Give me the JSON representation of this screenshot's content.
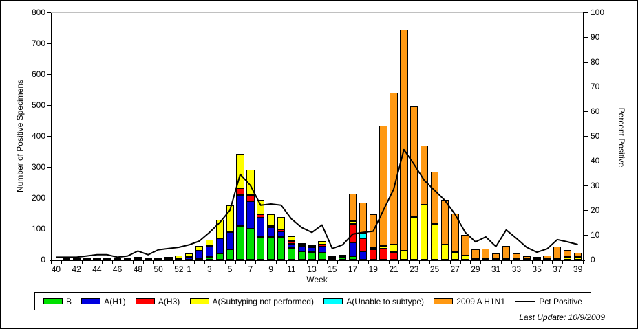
{
  "figure": {
    "last_update": "Last Update: 10/9/2009"
  },
  "axes": {
    "x_title": "Week",
    "y_left_title": "Number of Positive Specimens",
    "y_right_title": "Percent Positive",
    "y_left_ticks": [
      "0",
      "100",
      "200",
      "300",
      "400",
      "500",
      "600",
      "700",
      "800"
    ],
    "y_right_ticks": [
      "0",
      "10",
      "20",
      "30",
      "40",
      "50",
      "60",
      "70",
      "80",
      "90",
      "100"
    ],
    "x_labels": [
      "40",
      "42",
      "44",
      "46",
      "48",
      "50",
      "52",
      "1",
      "3",
      "5",
      "7",
      "9",
      "11",
      "13",
      "15",
      "17",
      "19",
      "21",
      "23",
      "25",
      "27",
      "29",
      "31",
      "33",
      "35",
      "37",
      "39"
    ]
  },
  "legend": {
    "items": [
      {
        "label": "B",
        "color": "#00E100",
        "type": "box"
      },
      {
        "label": "A(H1)",
        "color": "#0000E0",
        "type": "box"
      },
      {
        "label": "A(H3)",
        "color": "#FF0000",
        "type": "box"
      },
      {
        "label": "A(Subtyping not performed)",
        "color": "#FFFF00",
        "type": "box"
      },
      {
        "label": "A(Unable to subtype)",
        "color": "#00FFFF",
        "type": "box"
      },
      {
        "label": "2009 A H1N1",
        "color": "#FF9913",
        "type": "box"
      },
      {
        "label": "Pct Positive",
        "color": "#000000",
        "type": "line"
      }
    ]
  },
  "chart_data": {
    "type": "bar",
    "subtype": "stacked-bars-with-line-overlay",
    "title": "",
    "xlabel": "Week",
    "ylabel_left": "Number of Positive Specimens",
    "ylabel_right": "Percent Positive",
    "y_left_range": [
      0,
      800
    ],
    "y_right_range": [
      0,
      100
    ],
    "grid": "single gray line at top (800 / 100 level)",
    "legend_position": "bottom",
    "categories": [
      "40",
      "41",
      "42",
      "43",
      "44",
      "45",
      "46",
      "47",
      "48",
      "49",
      "50",
      "51",
      "52",
      "1",
      "2",
      "3",
      "4",
      "5",
      "6",
      "7",
      "8",
      "9",
      "10",
      "11",
      "12",
      "13",
      "14",
      "15",
      "16",
      "17",
      "18",
      "19",
      "20",
      "21",
      "22",
      "23",
      "24",
      "25",
      "26",
      "27",
      "28",
      "29",
      "30",
      "31",
      "32",
      "33",
      "34",
      "35",
      "36",
      "37",
      "38",
      "39"
    ],
    "series": [
      {
        "name": "B",
        "color": "#00E100",
        "values": [
          0,
          0,
          0,
          0,
          1,
          0,
          0,
          0,
          1,
          0,
          1,
          1,
          1,
          0,
          3,
          8,
          20,
          33,
          110,
          100,
          74,
          74,
          74,
          38,
          26,
          25,
          22,
          4,
          6,
          11,
          0,
          0,
          0,
          0,
          0,
          0,
          0,
          0,
          0,
          0,
          0,
          0,
          0,
          0,
          0,
          0,
          0,
          0,
          0,
          0,
          0,
          0
        ]
      },
      {
        "name": "A(H1)",
        "color": "#0000E0",
        "values": [
          0,
          0,
          0,
          1,
          1,
          1,
          0,
          1,
          2,
          1,
          2,
          2,
          4,
          8,
          25,
          35,
          48,
          55,
          100,
          90,
          62,
          30,
          18,
          13,
          18,
          15,
          20,
          3,
          5,
          44,
          26,
          0,
          0,
          0,
          0,
          0,
          0,
          0,
          0,
          0,
          0,
          0,
          0,
          0,
          0,
          0,
          0,
          0,
          0,
          0,
          0,
          0
        ]
      },
      {
        "name": "A(H3)",
        "color": "#FF0000",
        "values": [
          0,
          0,
          0,
          0,
          0,
          0,
          0,
          0,
          0,
          0,
          0,
          0,
          0,
          0,
          2,
          4,
          0,
          0,
          22,
          18,
          11,
          6,
          5,
          8,
          4,
          4,
          7,
          1,
          0,
          60,
          44,
          33,
          35,
          25,
          0,
          0,
          0,
          0,
          0,
          0,
          0,
          0,
          0,
          0,
          0,
          0,
          0,
          0,
          0,
          0,
          0,
          0
        ]
      },
      {
        "name": "A(Subtyping not performed)",
        "color": "#FFFF00",
        "values": [
          0,
          1,
          1,
          2,
          3,
          3,
          1,
          2,
          6,
          2,
          4,
          5,
          8,
          12,
          15,
          18,
          60,
          88,
          111,
          83,
          46,
          37,
          41,
          17,
          4,
          5,
          10,
          2,
          4,
          9,
          0,
          5,
          10,
          25,
          30,
          138,
          178,
          115,
          49,
          25,
          13,
          5,
          5,
          3,
          5,
          3,
          2,
          2,
          3,
          4,
          8,
          8
        ]
      },
      {
        "name": "A(Unable to subtype)",
        "color": "#00FFFF",
        "values": [
          0,
          0,
          0,
          0,
          0,
          0,
          0,
          0,
          0,
          0,
          0,
          0,
          0,
          0,
          0,
          0,
          0,
          0,
          0,
          0,
          0,
          0,
          0,
          0,
          0,
          0,
          0,
          0,
          0,
          0,
          16,
          0,
          0,
          0,
          0,
          0,
          0,
          0,
          0,
          0,
          0,
          0,
          0,
          0,
          0,
          0,
          0,
          0,
          0,
          0,
          0,
          0
        ]
      },
      {
        "name": "2009 A H1N1",
        "color": "#FF9913",
        "values": [
          0,
          0,
          0,
          0,
          0,
          0,
          0,
          0,
          0,
          0,
          0,
          0,
          0,
          0,
          0,
          0,
          0,
          0,
          0,
          0,
          0,
          0,
          0,
          0,
          0,
          0,
          0,
          0,
          0,
          89,
          98,
          109,
          388,
          490,
          715,
          357,
          191,
          169,
          144,
          124,
          67,
          28,
          31,
          17,
          40,
          18,
          9,
          6,
          10,
          39,
          24,
          14
        ]
      }
    ],
    "line": {
      "name": "Pct Positive",
      "color": "#000000",
      "axis": "right",
      "values": [
        1,
        1,
        1,
        1.5,
        2,
        2,
        1,
        1.5,
        3.5,
        2,
        4,
        4.5,
        5,
        6,
        7.5,
        11,
        15,
        20,
        34.5,
        30,
        22,
        22.5,
        22,
        16.5,
        13,
        11,
        14,
        4.5,
        6,
        10.3,
        11,
        11.5,
        20,
        28.5,
        44.5,
        38.5,
        32,
        28,
        24,
        18.3,
        11,
        7.2,
        9.2,
        5.3,
        12,
        8.6,
        5,
        3,
        4.4,
        8.1,
        7.2,
        6.1
      ]
    }
  }
}
